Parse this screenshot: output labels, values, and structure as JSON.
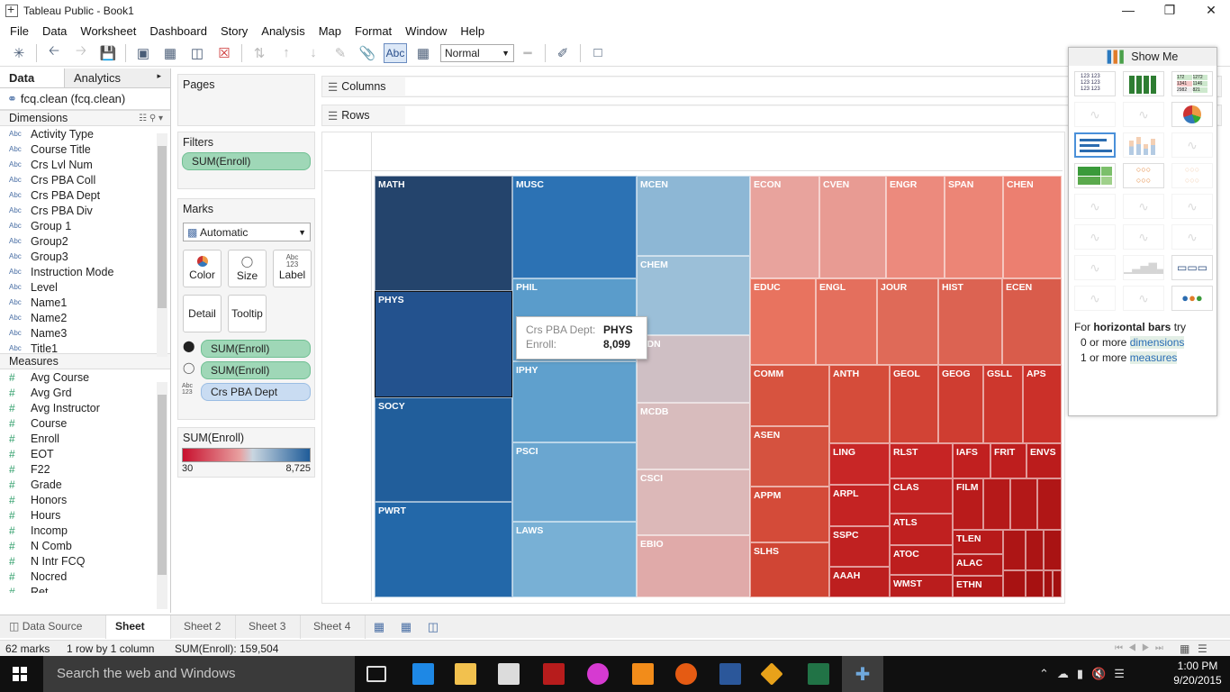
{
  "window": {
    "title": "Tableau Public - Book1"
  },
  "menu": [
    "File",
    "Data",
    "Worksheet",
    "Dashboard",
    "Story",
    "Analysis",
    "Map",
    "Format",
    "Window",
    "Help"
  ],
  "toolbar": {
    "abc_label": "Abc",
    "fit_value": "Normal"
  },
  "leftpane": {
    "tab_data": "Data",
    "tab_analytics": "Analytics",
    "datasource": "fcq.clean (fcq.clean)",
    "dimensions_label": "Dimensions",
    "dimensions": [
      "Activity Type",
      "Course Title",
      "Crs Lvl Num",
      "Crs PBA Coll",
      "Crs PBA Dept",
      "Crs PBA Div",
      "Group 1",
      "Group2",
      "Group3",
      "Instruction Mode",
      "Level",
      "Name1",
      "Name2",
      "Name3",
      "Title1"
    ],
    "measures_label": "Measures",
    "measures": [
      "Avg Course",
      "Avg Grd",
      "Avg Instructor",
      "Course",
      "Enroll",
      "EOT",
      "F22",
      "Grade",
      "Honors",
      "Hours",
      "Incomp",
      "N Comb",
      "N Intr FCQ",
      "Nocred",
      "Ret"
    ],
    "abc_badge": "Abc",
    "hash_badge": "#"
  },
  "cards": {
    "pages": "Pages",
    "filters": "Filters",
    "filter_pill": "SUM(Enroll)",
    "marks": "Marks",
    "mark_type": "Automatic",
    "color": "Color",
    "size": "Size",
    "label": "Label",
    "label_icon": "Abc\n123",
    "detail": "Detail",
    "tooltip": "Tooltip",
    "mark_pills": [
      "SUM(Enroll)",
      "SUM(Enroll)",
      "Crs PBA Dept"
    ],
    "legend_title": "SUM(Enroll)",
    "legend_min": "30",
    "legend_max": "8,725"
  },
  "shelves": {
    "columns": "Columns",
    "rows": "Rows"
  },
  "treemap": [
    {
      "n": "MATH",
      "c": "#24446c"
    },
    {
      "n": "PHYS",
      "c": "#23528e"
    },
    {
      "n": "SOCY",
      "c": "#215e9b"
    },
    {
      "n": "PWRT",
      "c": "#2368a9"
    },
    {
      "n": "MUSC",
      "c": "#2c72b4"
    },
    {
      "n": "PHIL",
      "c": "#5a9ccb"
    },
    {
      "n": "IPHY",
      "c": "#5fa0cd"
    },
    {
      "n": "PSCI",
      "c": "#6aa6d0"
    },
    {
      "n": "LAWS",
      "c": "#78b0d5"
    },
    {
      "n": "MCEN",
      "c": "#8db7d5"
    },
    {
      "n": "CHEM",
      "c": "#9bbfd8"
    },
    {
      "n": "HDN",
      "c": "#cfbfc4"
    },
    {
      "n": "MCDB",
      "c": "#d8bcbd"
    },
    {
      "n": "CSCI",
      "c": "#dcb8b8"
    },
    {
      "n": "EBIO",
      "c": "#e0aaa9"
    },
    {
      "n": "ECON",
      "c": "#e8a39d"
    },
    {
      "n": "CVEN",
      "c": "#e89b93"
    },
    {
      "n": "ENGR",
      "c": "#ec8a7d"
    },
    {
      "n": "SPAN",
      "c": "#ec8576"
    },
    {
      "n": "CHEN",
      "c": "#ec7f70"
    },
    {
      "n": "EDUC",
      "c": "#e8735f"
    },
    {
      "n": "ENGL",
      "c": "#e46f5d"
    },
    {
      "n": "JOUR",
      "c": "#df6a58"
    },
    {
      "n": "HIST",
      "c": "#dc6352"
    },
    {
      "n": "ECEN",
      "c": "#d95c4b"
    },
    {
      "n": "COMM",
      "c": "#d7533f"
    },
    {
      "n": "ANTH",
      "c": "#d54c3a"
    },
    {
      "n": "GEOL",
      "c": "#d24335"
    },
    {
      "n": "GEOG",
      "c": "#cf3d31"
    },
    {
      "n": "GSLL",
      "c": "#cd372d"
    },
    {
      "n": "APS",
      "c": "#cb3029"
    },
    {
      "n": "ASEN",
      "c": "#d5523f"
    },
    {
      "n": "APPM",
      "c": "#d44b39"
    },
    {
      "n": "SLHS",
      "c": "#d04534"
    },
    {
      "n": "LING",
      "c": "#c82626"
    },
    {
      "n": "RLST",
      "c": "#c62424"
    },
    {
      "n": "IAFS",
      "c": "#c12020"
    },
    {
      "n": "FRIT",
      "c": "#be1e1e"
    },
    {
      "n": "ENVS",
      "c": "#bb1c1c"
    },
    {
      "n": "ARPL",
      "c": "#c42323"
    },
    {
      "n": "CLAS",
      "c": "#c22222"
    },
    {
      "n": "FILM",
      "c": "#b91b1b"
    },
    {
      "n": "SSPC",
      "c": "#c02121"
    },
    {
      "n": "ATLS",
      "c": "#c02020"
    },
    {
      "n": "ATOC",
      "c": "#bd1e1e"
    },
    {
      "n": "TLEN",
      "c": "#b71a1a"
    },
    {
      "n": "AAAH",
      "c": "#bd1f1f"
    },
    {
      "n": "WMST",
      "c": "#ba1d1d"
    },
    {
      "n": "ALAC",
      "c": "#b41818"
    },
    {
      "n": "ETHN",
      "c": "#b21717"
    }
  ],
  "tooltip": {
    "k1": "Crs PBA Dept:",
    "v1": "PHYS",
    "k2": "Enroll:",
    "v2": "8,099"
  },
  "showme": {
    "title": "Show Me",
    "hint_pre": "For ",
    "hint_bold": "horizontal bars",
    "hint_post": " try",
    "dim_line_pre": "0 or more ",
    "dim_line_link": "dimensions",
    "mea_line_pre": "1 or more ",
    "mea_line_link": "measures",
    "text_table": "123 123\n123 123\n123 123",
    "highlight_table_vals": [
      "172",
      "1272",
      "1341",
      "1146",
      "2982",
      "821"
    ]
  },
  "sheets": [
    "Data Source",
    "Sheet 1",
    "Sheet 2",
    "Sheet 3",
    "Sheet 4"
  ],
  "status": {
    "marks": "62 marks",
    "dims": "1 row by 1 column",
    "sum": "SUM(Enroll): 159,504"
  },
  "taskbar": {
    "search": "Search the web and Windows",
    "time": "1:00 PM",
    "date": "9/20/2015"
  },
  "colors": {
    "legend_low": "#c8102e",
    "legend_high": "#1f5c99",
    "accent": "#4a90d9"
  }
}
